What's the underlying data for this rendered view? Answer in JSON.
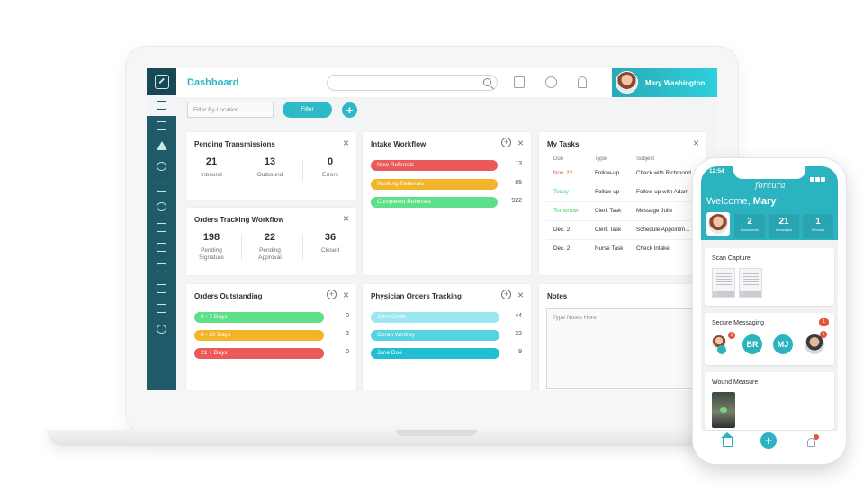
{
  "topbar": {
    "title": "Dashboard",
    "user_name": "Mary Washington"
  },
  "filters": {
    "location_placeholder": "Filter By Location",
    "filter_label": "Filter",
    "add_label": "+"
  },
  "pending_transmissions": {
    "title": "Pending Transmissions",
    "stats": [
      {
        "value": "21",
        "label": "Inbound"
      },
      {
        "value": "13",
        "label": "Outbound"
      },
      {
        "value": "0",
        "label": "Errors"
      }
    ]
  },
  "orders_tracking": {
    "title": "Orders Tracking Workflow",
    "stats": [
      {
        "value": "198",
        "label": "Pending Signature"
      },
      {
        "value": "22",
        "label": "Pending Approval"
      },
      {
        "value": "36",
        "label": "Closed"
      }
    ]
  },
  "intake_workflow": {
    "title": "Intake Workflow",
    "rows": [
      {
        "label": "New Referrals",
        "count": "13",
        "fill": 0.94,
        "color": "#ea5a5a"
      },
      {
        "label": "Working Referrals",
        "count": "85",
        "fill": 0.94,
        "color": "#f2b529"
      },
      {
        "label": "Completed Referrals",
        "count": "922",
        "fill": 0.94,
        "color": "#5ee08a"
      }
    ]
  },
  "my_tasks": {
    "title": "My Tasks",
    "headers": {
      "due": "Due",
      "type": "Type",
      "subject": "Subject"
    },
    "rows": [
      {
        "due": "Nov. 22",
        "type": "Follow-up",
        "subject": "Check with Richmond",
        "due_style": "red"
      },
      {
        "due": "Today",
        "type": "Follow-up",
        "subject": "Follow-up with Adam",
        "due_style": "green"
      },
      {
        "due": "Tomorrow",
        "type": "Clerk Task",
        "subject": "Message Julie",
        "due_style": "green"
      },
      {
        "due": "Dec. 2",
        "type": "Clerk Task",
        "subject": "Schedule Appointm...",
        "due_style": "normal"
      },
      {
        "due": "Dec. 2",
        "type": "Nurse Task",
        "subject": "Check Intake",
        "due_style": "normal"
      }
    ]
  },
  "orders_outstanding": {
    "title": "Orders Outstanding",
    "rows": [
      {
        "label": "0 - 7 Days",
        "count": "0",
        "fill": 0.95,
        "color": "#5ee08a"
      },
      {
        "label": "8 - 20 Days",
        "count": "2",
        "fill": 0.95,
        "color": "#f2b529"
      },
      {
        "label": "21 + Days",
        "count": "0",
        "fill": 0.95,
        "color": "#ea5a5a"
      }
    ]
  },
  "physician_orders": {
    "title": "Physician Orders Tracking",
    "rows": [
      {
        "label": "John Smith",
        "count": "44",
        "fill": 0.95,
        "color": "#9be7f0"
      },
      {
        "label": "Oprah Winfrey",
        "count": "22",
        "fill": 0.95,
        "color": "#55d3e2"
      },
      {
        "label": "Jane Doe",
        "count": "9",
        "fill": 0.95,
        "color": "#22bfd2"
      }
    ]
  },
  "notes": {
    "title": "Notes",
    "placeholder": "Type Notes Here"
  },
  "phone": {
    "time": "12:54",
    "brand": "forcura",
    "welcome": "Welcome,",
    "welcome_name": "Mary",
    "stats": [
      {
        "value": "2",
        "label": "Documents"
      },
      {
        "value": "21",
        "label": "Messages"
      },
      {
        "value": "1",
        "label": "Wounds"
      }
    ],
    "scan_title": "Scan Capture",
    "docs": [
      "1",
      "2"
    ],
    "messaging_title": "Secure Messaging",
    "messaging_badge": "1",
    "contacts": [
      "BR",
      "MJ"
    ],
    "contact_badges": [
      "1",
      "1"
    ],
    "wound_title": "Wound Measure"
  },
  "colors": {
    "accent": "#2cb3c0",
    "sidebar": "#1e5a68",
    "danger": "#ea5a5a",
    "warning": "#f2b529",
    "success": "#5ee08a"
  }
}
